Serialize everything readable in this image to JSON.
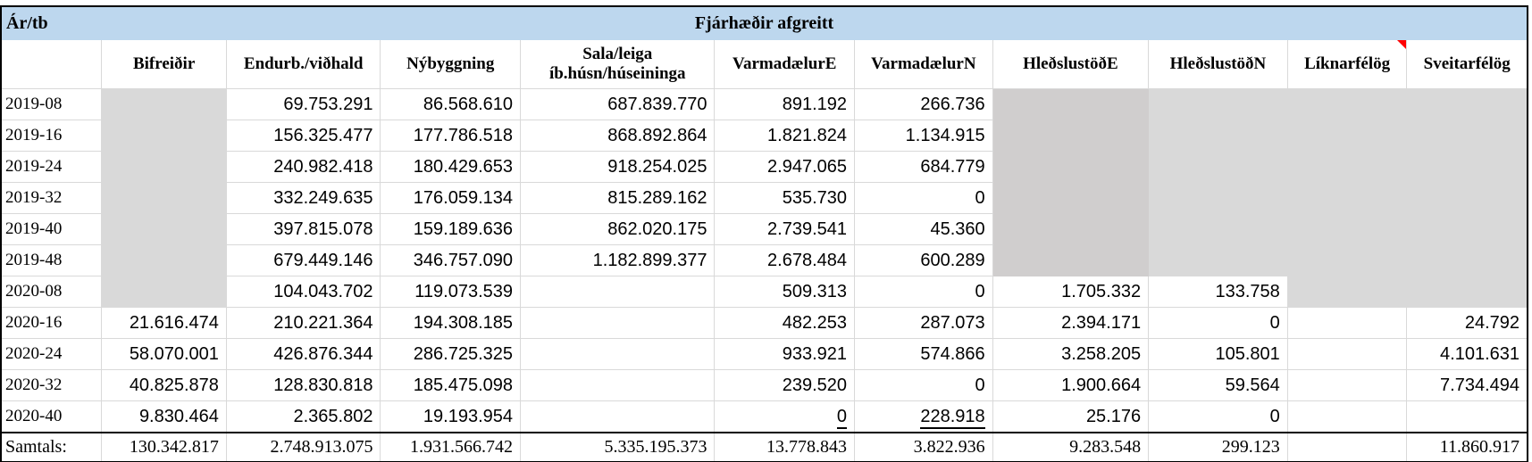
{
  "table": {
    "corner_label": "Ár/tb",
    "title": "Fjárhæðir afgreitt",
    "colors": {
      "title_band_blue": "#bdd7ee",
      "shade_light_gray": "#d9d9d9",
      "shade_dark_gray": "#d0cece",
      "comment_marker_red": "#ff0000"
    },
    "columns": [
      {
        "label": "Bifreiðir"
      },
      {
        "label": "Endurb./viðhald"
      },
      {
        "label": "Nýbyggning"
      },
      {
        "label": "Sala/leiga íb.húsn/húseininga"
      },
      {
        "label": "VarmadælurE"
      },
      {
        "label": "VarmadælurN"
      },
      {
        "label": "HleðslustöðE"
      },
      {
        "label": "HleðslustöðN"
      },
      {
        "label": "Líknarfélög",
        "comment": true
      },
      {
        "label": "Sveitarfélög"
      }
    ],
    "rows": [
      {
        "label": "2019-08",
        "cells": [
          {
            "v": "",
            "bg": "g1"
          },
          {
            "v": "69.753.291"
          },
          {
            "v": "86.568.610"
          },
          {
            "v": "687.839.770"
          },
          {
            "v": "891.192"
          },
          {
            "v": "266.736"
          },
          {
            "v": "",
            "bg": "g2"
          },
          {
            "v": "",
            "bg": "g1"
          },
          {
            "v": "",
            "bg": "g1"
          },
          {
            "v": "",
            "bg": "g1"
          }
        ]
      },
      {
        "label": "2019-16",
        "cells": [
          {
            "v": "",
            "bg": "g1"
          },
          {
            "v": "156.325.477"
          },
          {
            "v": "177.786.518"
          },
          {
            "v": "868.892.864"
          },
          {
            "v": "1.821.824"
          },
          {
            "v": "1.134.915"
          },
          {
            "v": "",
            "bg": "g2"
          },
          {
            "v": "",
            "bg": "g1"
          },
          {
            "v": "",
            "bg": "g1"
          },
          {
            "v": "",
            "bg": "g1"
          }
        ]
      },
      {
        "label": "2019-24",
        "cells": [
          {
            "v": "",
            "bg": "g1"
          },
          {
            "v": "240.982.418"
          },
          {
            "v": "180.429.653"
          },
          {
            "v": "918.254.025"
          },
          {
            "v": "2.947.065"
          },
          {
            "v": "684.779"
          },
          {
            "v": "",
            "bg": "g2"
          },
          {
            "v": "",
            "bg": "g1"
          },
          {
            "v": "",
            "bg": "g1"
          },
          {
            "v": "",
            "bg": "g1"
          }
        ]
      },
      {
        "label": "2019-32",
        "cells": [
          {
            "v": "",
            "bg": "g1"
          },
          {
            "v": "332.249.635"
          },
          {
            "v": "176.059.134"
          },
          {
            "v": "815.289.162"
          },
          {
            "v": "535.730"
          },
          {
            "v": "0"
          },
          {
            "v": "",
            "bg": "g2"
          },
          {
            "v": "",
            "bg": "g1"
          },
          {
            "v": "",
            "bg": "g1"
          },
          {
            "v": "",
            "bg": "g1"
          }
        ]
      },
      {
        "label": "2019-40",
        "cells": [
          {
            "v": "",
            "bg": "g1"
          },
          {
            "v": "397.815.078"
          },
          {
            "v": "159.189.636"
          },
          {
            "v": "862.020.175"
          },
          {
            "v": "2.739.541"
          },
          {
            "v": "45.360"
          },
          {
            "v": "",
            "bg": "g2"
          },
          {
            "v": "",
            "bg": "g1"
          },
          {
            "v": "",
            "bg": "g1"
          },
          {
            "v": "",
            "bg": "g1"
          }
        ]
      },
      {
        "label": "2019-48",
        "cells": [
          {
            "v": "",
            "bg": "g1"
          },
          {
            "v": "679.449.146"
          },
          {
            "v": "346.757.090"
          },
          {
            "v": "1.182.899.377"
          },
          {
            "v": "2.678.484"
          },
          {
            "v": "600.289"
          },
          {
            "v": "",
            "bg": "g2"
          },
          {
            "v": "",
            "bg": "g1"
          },
          {
            "v": "",
            "bg": "g1"
          },
          {
            "v": "",
            "bg": "g1"
          }
        ]
      },
      {
        "label": "2020-08",
        "cells": [
          {
            "v": "",
            "bg": "g1"
          },
          {
            "v": "104.043.702"
          },
          {
            "v": "119.073.539"
          },
          {
            "v": ""
          },
          {
            "v": "509.313"
          },
          {
            "v": "0"
          },
          {
            "v": "1.705.332"
          },
          {
            "v": "133.758"
          },
          {
            "v": "",
            "bg": "g1"
          },
          {
            "v": "",
            "bg": "g1"
          }
        ]
      },
      {
        "label": "2020-16",
        "cells": [
          {
            "v": "21.616.474"
          },
          {
            "v": "210.221.364"
          },
          {
            "v": "194.308.185"
          },
          {
            "v": ""
          },
          {
            "v": "482.253"
          },
          {
            "v": "287.073"
          },
          {
            "v": "2.394.171"
          },
          {
            "v": "0"
          },
          {
            "v": ""
          },
          {
            "v": "24.792"
          }
        ]
      },
      {
        "label": "2020-24",
        "cells": [
          {
            "v": "58.070.001"
          },
          {
            "v": "426.876.344"
          },
          {
            "v": "286.725.325"
          },
          {
            "v": ""
          },
          {
            "v": "933.921"
          },
          {
            "v": "574.866"
          },
          {
            "v": "3.258.205"
          },
          {
            "v": "105.801"
          },
          {
            "v": ""
          },
          {
            "v": "4.101.631"
          }
        ]
      },
      {
        "label": "2020-32",
        "cells": [
          {
            "v": "40.825.878"
          },
          {
            "v": "128.830.818"
          },
          {
            "v": "185.475.098"
          },
          {
            "v": ""
          },
          {
            "v": "239.520"
          },
          {
            "v": "0"
          },
          {
            "v": "1.900.664"
          },
          {
            "v": "59.564"
          },
          {
            "v": ""
          },
          {
            "v": "7.734.494"
          }
        ]
      },
      {
        "label": "2020-40",
        "cells": [
          {
            "v": "9.830.464"
          },
          {
            "v": "2.365.802"
          },
          {
            "v": "19.193.954"
          },
          {
            "v": ""
          },
          {
            "v": "0",
            "u": true
          },
          {
            "v": "228.918",
            "u": true
          },
          {
            "v": "25.176"
          },
          {
            "v": "0"
          },
          {
            "v": ""
          },
          {
            "v": ""
          }
        ]
      }
    ],
    "totals": {
      "label": "Samtals:",
      "cells": [
        "130.342.817",
        "2.748.913.075",
        "1.931.566.742",
        "5.335.195.373",
        "13.778.843",
        "3.822.936",
        "9.283.548",
        "299.123",
        "",
        "11.860.917"
      ]
    }
  }
}
